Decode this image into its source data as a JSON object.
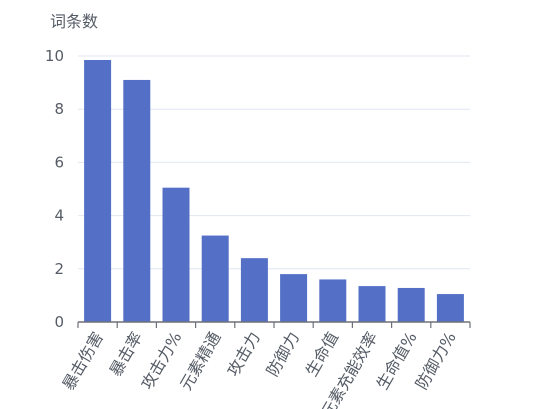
{
  "chart_data": {
    "type": "bar",
    "title": "",
    "xlabel": "",
    "ylabel": "词条数",
    "ylim": [
      0,
      10
    ],
    "yticks": [
      0,
      2,
      4,
      6,
      8,
      10
    ],
    "categories": [
      "暴击伤害",
      "暴击率",
      "攻击力%",
      "元素精通",
      "攻击力",
      "防御力",
      "生命值",
      "元素充能效率",
      "生命值%",
      "防御力%"
    ],
    "values": [
      9.85,
      9.1,
      5.05,
      3.25,
      2.4,
      1.8,
      1.6,
      1.35,
      1.28,
      1.05
    ],
    "grid": true,
    "legend": "none",
    "colors": {
      "bar": "#5470c6",
      "grid": "#e0e6f1",
      "axis": "#6e7079",
      "text": "#555c66"
    }
  }
}
